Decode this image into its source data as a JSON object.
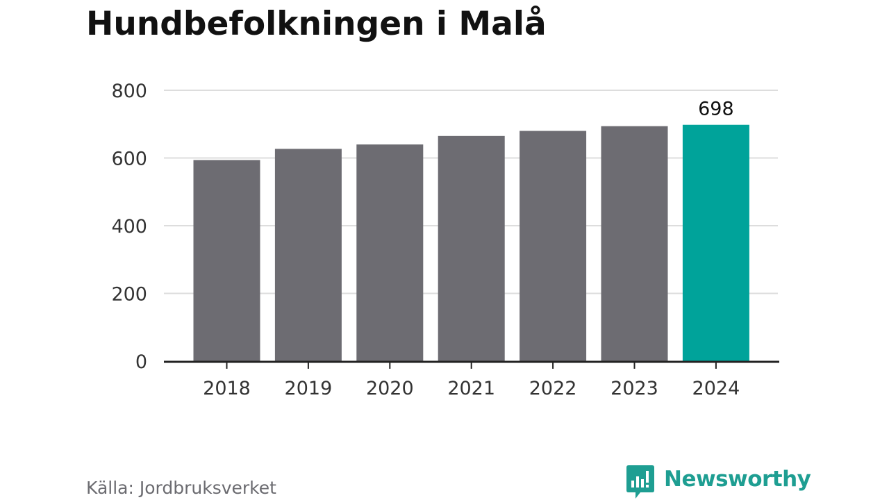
{
  "title": "Hundbefolkningen i Malå",
  "source": "Källa: Jordbruksverket",
  "brand": {
    "name": "Newsworthy"
  },
  "colors": {
    "bar": "#6d6c72",
    "highlight": "#00a39a",
    "grid": "#dddddd",
    "axis": "#222222",
    "text": "#333333",
    "brand": "#1e9e92"
  },
  "chart_data": {
    "type": "bar",
    "title": "Hundbefolkningen i Malå",
    "xlabel": "",
    "ylabel": "",
    "categories": [
      "2018",
      "2019",
      "2020",
      "2021",
      "2022",
      "2023",
      "2024"
    ],
    "values": [
      594,
      627,
      640,
      665,
      680,
      694,
      698
    ],
    "ylim": [
      0,
      800
    ],
    "yticks": [
      0,
      200,
      400,
      600,
      800
    ],
    "highlight_index": 6,
    "data_labels": [
      {
        "category": "2024",
        "text": "698"
      }
    ],
    "grid": true,
    "legend": "none"
  }
}
